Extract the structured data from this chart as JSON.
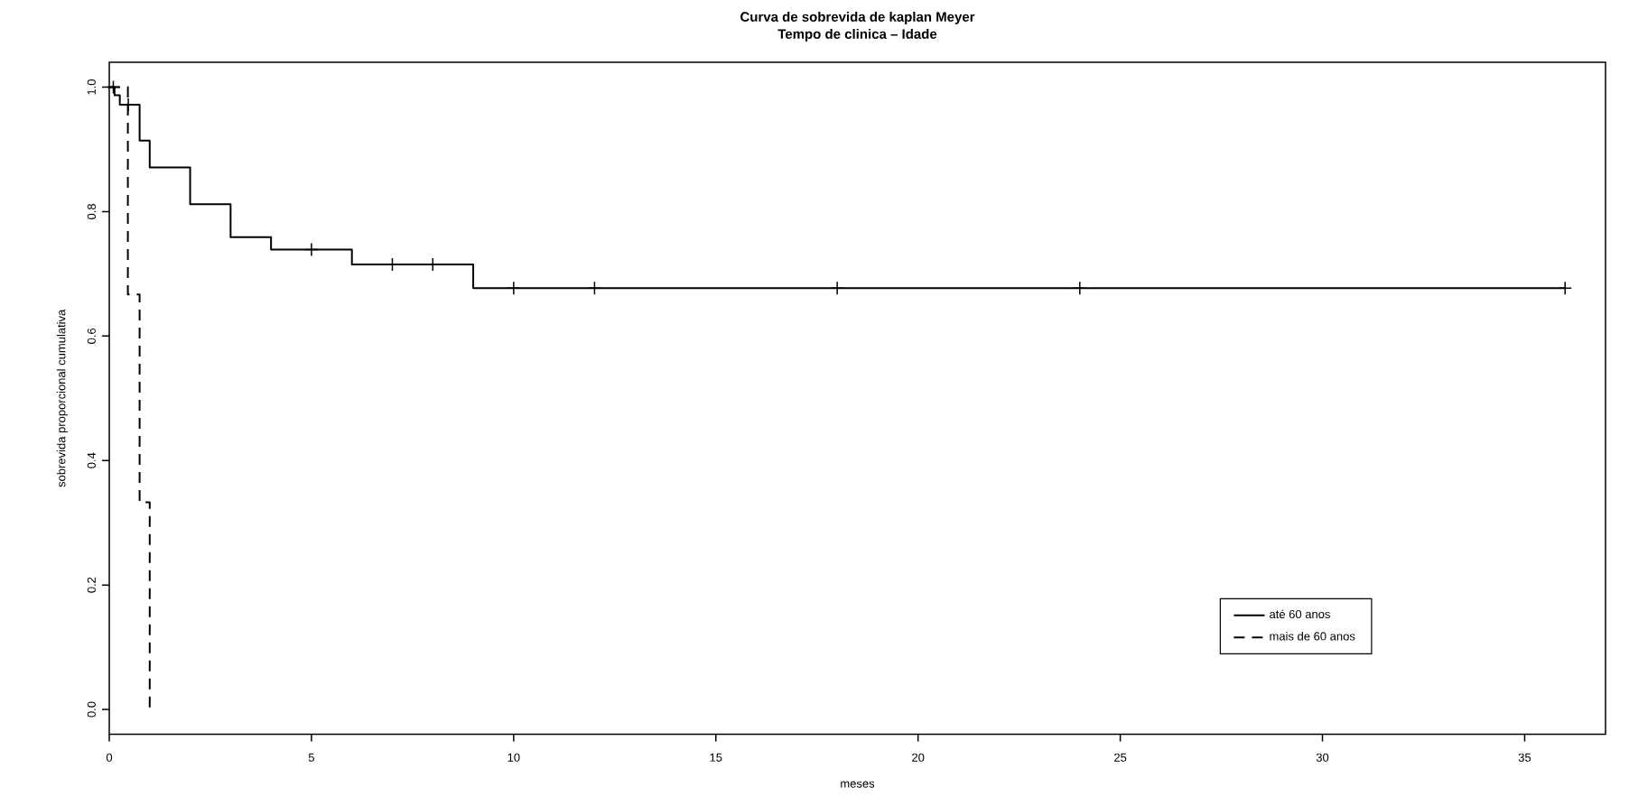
{
  "chart_data": {
    "type": "step",
    "title": "Curva de sobrevida de kaplan Meyer",
    "subtitle": "Tempo de clinica – Idade",
    "xlabel": "meses",
    "ylabel": "sobrevida proporcional cumulativa",
    "series": [
      {
        "name": "até 60 anos",
        "color": "#000000",
        "line_style": "solid",
        "marker": "none",
        "x": [
          0,
          0.13,
          0.26,
          0.75,
          1.0,
          2,
          3,
          4,
          6,
          9,
          36
        ],
        "values": [
          1,
          0.987,
          0.972,
          0.914,
          0.871,
          0.812,
          0.759,
          0.739,
          0.715,
          0.677,
          0.677
        ]
      },
      {
        "name": "mais de 60 anos",
        "color": "#000000",
        "line_style": "dashed",
        "marker": "none",
        "x": [
          0,
          0.46,
          0.75,
          1.0
        ],
        "values": [
          1,
          0.667,
          0.333,
          0
        ]
      },
      {
        "type": "scatter",
        "color": "#000000",
        "marker": "cross",
        "x": [
          0.1,
          0.47,
          5,
          7,
          8,
          10,
          12,
          18,
          24,
          36
        ],
        "values": [
          1,
          0.972,
          0.739,
          0.715,
          0.715,
          0.677,
          0.677,
          0.677,
          0.677,
          0.677
        ]
      }
    ],
    "xlim": [
      0,
      37
    ],
    "ylim": [
      -0.04,
      1.04
    ],
    "xticks": [
      0,
      5,
      10,
      15,
      20,
      25,
      30,
      35
    ],
    "yticks": [
      {
        "value": 0,
        "label": "0.0"
      },
      {
        "value": 0.2,
        "label": "0.2"
      },
      {
        "value": 0.4,
        "label": "0.4"
      },
      {
        "value": 0.6,
        "label": "0.6"
      },
      {
        "value": 0.8,
        "label": "0.8"
      },
      {
        "value": 1.0,
        "label": "1.0"
      }
    ],
    "grid": false,
    "legend": "bottom right"
  }
}
